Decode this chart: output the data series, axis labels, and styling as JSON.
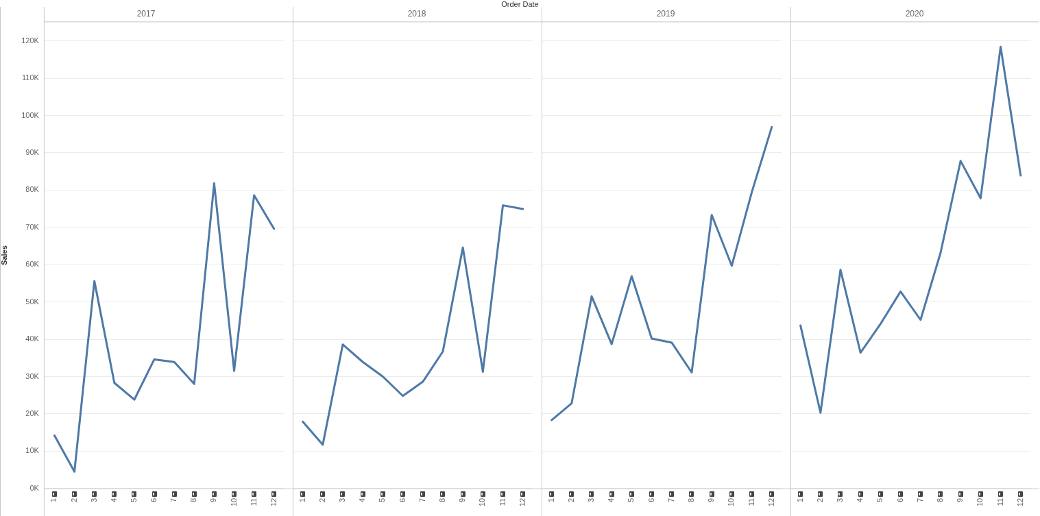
{
  "chart_data": [
    {
      "type": "line",
      "title": "2017",
      "ylabel": "Sales",
      "annotations": [
        "Order Date"
      ],
      "categories": [
        "1",
        "2",
        "3",
        "4",
        "5",
        "6",
        "7",
        "8",
        "9",
        "10",
        "11",
        "12"
      ],
      "grid": "y",
      "ylim": [
        0,
        125000
      ],
      "yticks": [
        {
          "value": 0,
          "label": "0K"
        },
        {
          "value": 10000,
          "label": "10K"
        },
        {
          "value": 20000,
          "label": "20K"
        },
        {
          "value": 30000,
          "label": "30K"
        },
        {
          "value": 40000,
          "label": "40K"
        },
        {
          "value": 50000,
          "label": "50K"
        },
        {
          "value": 60000,
          "label": "60K"
        },
        {
          "value": 70000,
          "label": "70K"
        },
        {
          "value": 80000,
          "label": "80K"
        },
        {
          "value": 90000,
          "label": "90K"
        },
        {
          "value": 100000,
          "label": "100K"
        },
        {
          "value": 110000,
          "label": "110K"
        },
        {
          "value": 120000,
          "label": "120K"
        }
      ],
      "series": [
        {
          "color": "#4e79a7",
          "values": [
            14200,
            4500,
            55600,
            28300,
            23800,
            34600,
            33900,
            28000,
            81800,
            31500,
            78600,
            69600
          ]
        }
      ]
    },
    {
      "type": "line",
      "title": "2018",
      "categories": [
        "1",
        "2",
        "3",
        "4",
        "5",
        "6",
        "7",
        "8",
        "9",
        "10",
        "11",
        "12"
      ],
      "grid": "y",
      "tick_labels": "x",
      "ylim": [
        0,
        125000
      ],
      "yticks": [
        0,
        10000,
        20000,
        30000,
        40000,
        50000,
        60000,
        70000,
        80000,
        90000,
        100000,
        110000,
        120000
      ],
      "series": [
        {
          "color": "#4e79a7",
          "values": [
            17900,
            11700,
            38600,
            33900,
            30000,
            24800,
            28600,
            36700,
            64600,
            31300,
            75900,
            74900
          ]
        }
      ]
    },
    {
      "type": "line",
      "title": "2019",
      "categories": [
        "1",
        "2",
        "3",
        "4",
        "5",
        "6",
        "7",
        "8",
        "9",
        "10",
        "11",
        "12"
      ],
      "grid": "y",
      "tick_labels": "x",
      "ylim": [
        0,
        125000
      ],
      "yticks": [
        0,
        10000,
        20000,
        30000,
        40000,
        50000,
        60000,
        70000,
        80000,
        90000,
        100000,
        110000,
        120000
      ],
      "series": [
        {
          "color": "#4e79a7",
          "values": [
            18300,
            22800,
            51500,
            38700,
            56900,
            40200,
            39100,
            31100,
            73300,
            59700,
            79400,
            96900
          ]
        }
      ]
    },
    {
      "type": "line",
      "title": "2020",
      "categories": [
        "1",
        "2",
        "3",
        "4",
        "5",
        "6",
        "7",
        "8",
        "9",
        "10",
        "11",
        "12"
      ],
      "grid": "y",
      "tick_labels": "x",
      "ylim": [
        0,
        125000
      ],
      "yticks": [
        0,
        10000,
        20000,
        30000,
        40000,
        50000,
        60000,
        70000,
        80000,
        90000,
        100000,
        110000,
        120000
      ],
      "series": [
        {
          "color": "#4e79a7",
          "values": [
            43700,
            20300,
            58600,
            36400,
            44100,
            52800,
            45200,
            63200,
            87800,
            77800,
            118400,
            83900
          ]
        }
      ]
    }
  ]
}
